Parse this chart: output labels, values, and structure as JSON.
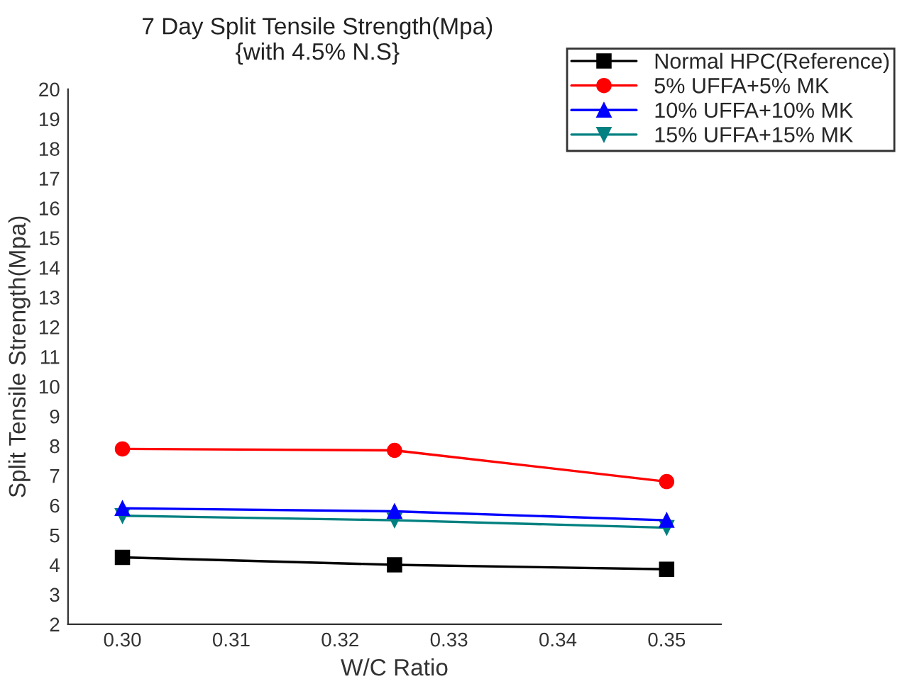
{
  "chart_data": {
    "type": "line",
    "title": "7 Day Split Tensile Strength(Mpa)\n{with 4.5% N.S}",
    "xlabel": "W/C Ratio",
    "ylabel": "Split Tensile Strength(Mpa)",
    "x": [
      0.3,
      0.325,
      0.35
    ],
    "series": [
      {
        "name": "Normal HPC(Reference)",
        "color": "#000000",
        "marker": "square",
        "values": [
          4.25,
          4.0,
          3.85
        ]
      },
      {
        "name": "5% UFFA+5% MK",
        "color": "#ff0000",
        "marker": "circle",
        "values": [
          7.9,
          7.85,
          6.8
        ]
      },
      {
        "name": "10% UFFA+10% MK",
        "color": "#0000ff",
        "marker": "triangle",
        "values": [
          5.9,
          5.8,
          5.5
        ]
      },
      {
        "name": "15% UFFA+15% MK",
        "color": "#008080",
        "marker": "triangle_down",
        "values": [
          5.65,
          5.5,
          5.25
        ]
      }
    ],
    "xlim": [
      0.295,
      0.355
    ],
    "xticks": [
      {
        "value": 0.3,
        "label": "0.30"
      },
      0.31,
      0.32,
      0.33,
      0.34,
      {
        "value": 0.35,
        "label": "0.35"
      }
    ],
    "ylim": [
      2,
      20
    ],
    "yticks": [
      2,
      3,
      4,
      5,
      6,
      7,
      8,
      9,
      10,
      11,
      12,
      13,
      14,
      15,
      16,
      17,
      18,
      19,
      20
    ],
    "grid": false,
    "legend": "top right",
    "line_style": "solid"
  }
}
